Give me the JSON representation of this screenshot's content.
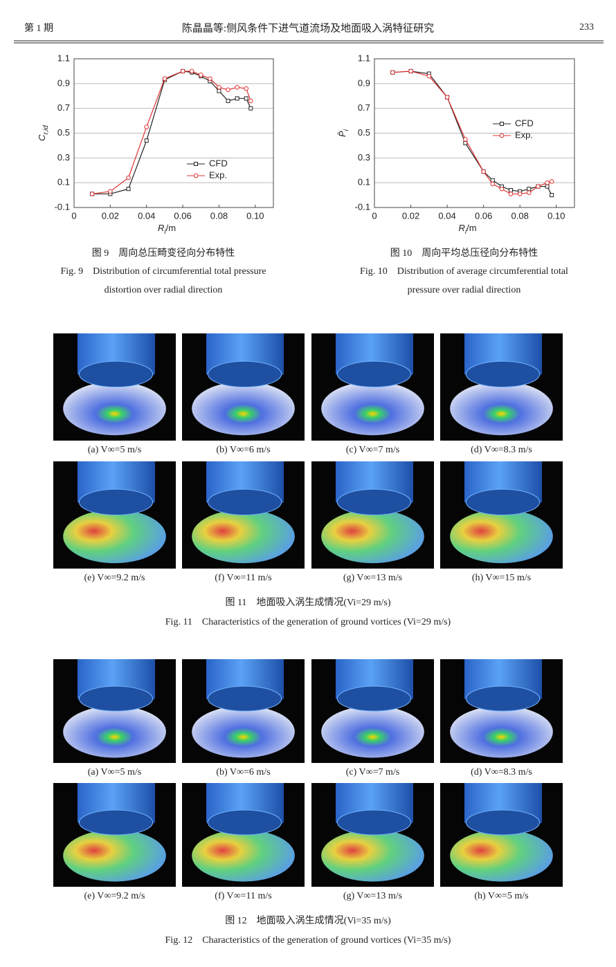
{
  "header": {
    "issue": "第 1 期",
    "title": "陈晶晶等:侧风条件下进气道流场及地面吸入涡特征研究",
    "page": "233"
  },
  "chart_data": [
    {
      "type": "line",
      "y_label": "C",
      "y_label_sub": "r,id",
      "x_label": "R",
      "x_label_sub": "i",
      "x_label_unit": "/m",
      "x": [
        0.01,
        0.02,
        0.03,
        0.04,
        0.05,
        0.06,
        0.065,
        0.07,
        0.075,
        0.08,
        0.085,
        0.09,
        0.095,
        0.0975
      ],
      "series": [
        {
          "name": "CFD",
          "color": "#222222",
          "marker": "square",
          "values": [
            0.01,
            0.01,
            0.05,
            0.44,
            0.93,
            1.0,
            0.99,
            0.96,
            0.92,
            0.84,
            0.76,
            0.78,
            0.78,
            0.7
          ]
        },
        {
          "name": "Exp.",
          "color": "#e03030",
          "marker": "circle",
          "values": [
            0.01,
            0.03,
            0.14,
            0.55,
            0.94,
            1.0,
            1.0,
            0.97,
            0.94,
            0.87,
            0.85,
            0.87,
            0.86,
            0.76
          ]
        }
      ],
      "xlim": [
        0,
        0.11
      ],
      "ylim": [
        -0.1,
        1.1
      ],
      "xticks": [
        0,
        0.02,
        0.04,
        0.06,
        0.08,
        {
          "value": 0.1,
          "label": "0.10"
        }
      ],
      "yticks": [
        -0.1,
        0.1,
        0.3,
        0.5,
        0.7,
        0.9,
        1.1
      ],
      "grid": "y",
      "legend": "lower right",
      "caption_cn": "图 9　周向总压畸变径向分布特性",
      "caption_en": [
        "Fig. 9　Distribution of circumferential total pressure",
        "distortion over radial direction"
      ]
    },
    {
      "type": "line",
      "y_label": "P̄",
      "y_label_sub": "i",
      "x_label": "R",
      "x_label_sub": "i",
      "x_label_unit": "/m",
      "x": [
        0.01,
        0.02,
        0.03,
        0.04,
        0.05,
        0.06,
        0.065,
        0.07,
        0.075,
        0.08,
        0.085,
        0.09,
        0.095,
        0.0975
      ],
      "series": [
        {
          "name": "CFD",
          "color": "#222222",
          "marker": "square",
          "values": [
            0.99,
            1.0,
            0.98,
            0.79,
            0.42,
            0.19,
            0.12,
            0.07,
            0.04,
            0.03,
            0.05,
            0.07,
            0.07,
            0.0
          ]
        },
        {
          "name": "Exp.",
          "color": "#e03030",
          "marker": "circle",
          "values": [
            0.99,
            1.0,
            0.96,
            0.79,
            0.45,
            0.19,
            0.09,
            0.05,
            0.01,
            0.01,
            0.02,
            0.07,
            0.1,
            0.11
          ]
        }
      ],
      "xlim": [
        0,
        0.11
      ],
      "ylim": [
        -0.1,
        1.1
      ],
      "xticks": [
        0,
        0.02,
        0.04,
        0.06,
        0.08,
        {
          "value": 0.1,
          "label": "0.10"
        }
      ],
      "yticks": [
        -0.1,
        0.1,
        0.3,
        0.5,
        0.7,
        0.9,
        1.1
      ],
      "grid": "y",
      "legend": "right",
      "caption_cn": "图 10　周向平均总压径向分布特性",
      "caption_en": [
        "Fig. 10　Distribution of average circumferential total",
        "pressure over radial direction"
      ]
    }
  ],
  "figures": [
    {
      "panels": [
        "(a) V∞=5 m/s",
        "(b) V∞=6 m/s",
        "(c) V∞=7 m/s",
        "(d) V∞=8.3 m/s",
        "(e) V∞=9.2 m/s",
        "(f) V∞=11 m/s",
        "(g) V∞=13 m/s",
        "(h) V∞=15 m/s"
      ],
      "caption_cn": "图 11　地面吸入涡生成情况(Vi=29 m/s)",
      "caption_en": "Fig. 11　Characteristics of the generation of ground vortices (Vi=29 m/s)"
    },
    {
      "panels": [
        "(a) V∞=5 m/s",
        "(b) V∞=6 m/s",
        "(c) V∞=7 m/s",
        "(d) V∞=8.3 m/s",
        "(e) V∞=9.2 m/s",
        "(f) V∞=11 m/s",
        "(g) V∞=13 m/s",
        "(h) V∞=5 m/s"
      ],
      "caption_cn": "图 12　地面吸入涡生成情况(Vi=35 m/s)",
      "caption_en": "Fig. 12　Characteristics of the generation of ground vortices (Vi=35 m/s)"
    }
  ]
}
